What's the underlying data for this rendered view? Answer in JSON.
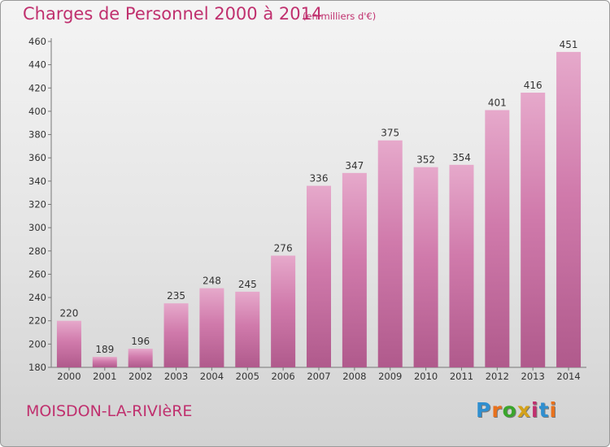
{
  "chart_data": {
    "type": "bar",
    "title": "Charges de Personnel 2000 à 2014",
    "subtitle": "(en milliers d'€)",
    "categories": [
      "2000",
      "2001",
      "2002",
      "2003",
      "2004",
      "2005",
      "2006",
      "2007",
      "2008",
      "2009",
      "2010",
      "2011",
      "2012",
      "2013",
      "2014"
    ],
    "values": [
      220,
      189,
      196,
      235,
      248,
      245,
      276,
      336,
      347,
      375,
      352,
      354,
      401,
      416,
      451
    ],
    "ylim": [
      180,
      460
    ],
    "yticks": [
      180,
      200,
      220,
      240,
      260,
      280,
      300,
      320,
      340,
      360,
      380,
      400,
      420,
      440,
      460
    ],
    "grid": false,
    "bar_color": "#d07aab",
    "bar_color_top": "#e6a9cb",
    "bar_color_bottom": "#b05a8c"
  },
  "footer": {
    "commune": "MOISDON-LA-RIVIèRE",
    "logo_text": "Proxiti",
    "logo_colors": [
      "#2f8fd0",
      "#e8711c",
      "#3aa52c",
      "#d4a21a",
      "#c0306e",
      "#2f8fd0",
      "#e8711c"
    ]
  }
}
